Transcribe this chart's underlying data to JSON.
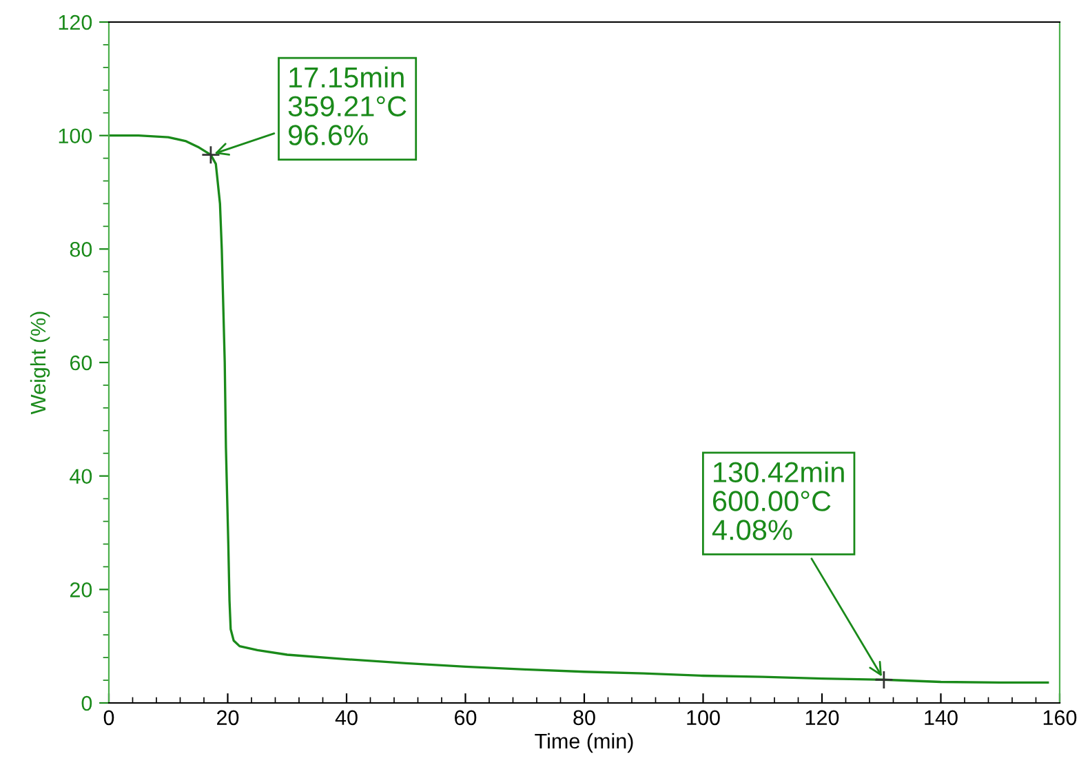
{
  "chart_data": {
    "type": "line",
    "xlabel": "Time (min)",
    "ylabel": "Weight (%)",
    "xlim": [
      0,
      160
    ],
    "ylim": [
      0,
      120
    ],
    "xticks": [
      0,
      20,
      40,
      60,
      80,
      100,
      120,
      140,
      160
    ],
    "yticks": [
      0,
      20,
      40,
      60,
      80,
      100,
      120
    ],
    "grid": false,
    "legend": false,
    "series": [
      {
        "color": "#1a8a1a",
        "x": [
          0,
          5,
          10,
          13,
          15,
          17.15,
          18,
          18.7,
          19,
          19.5,
          19.7,
          20.1,
          20.3,
          20.5,
          21,
          22,
          25,
          30,
          40,
          50,
          60,
          70,
          80,
          90,
          100,
          110,
          120,
          130.42,
          140,
          150,
          158
        ],
        "values": [
          100,
          100,
          99.7,
          99,
          98,
          96.6,
          95,
          88,
          80,
          60,
          45,
          28,
          18,
          13,
          11,
          10,
          9.3,
          8.5,
          7.7,
          7.0,
          6.4,
          5.9,
          5.5,
          5.2,
          4.8,
          4.6,
          4.3,
          4.1,
          3.7,
          3.6,
          3.6
        ]
      }
    ],
    "annotations": [
      {
        "text": "17.15min\n359.21°C\n96.6%",
        "x": 17.15,
        "y": 96.6
      },
      {
        "text": "130.42min\n600.00°C\n4.08%",
        "x": 130.42,
        "y": 4.08
      }
    ]
  }
}
